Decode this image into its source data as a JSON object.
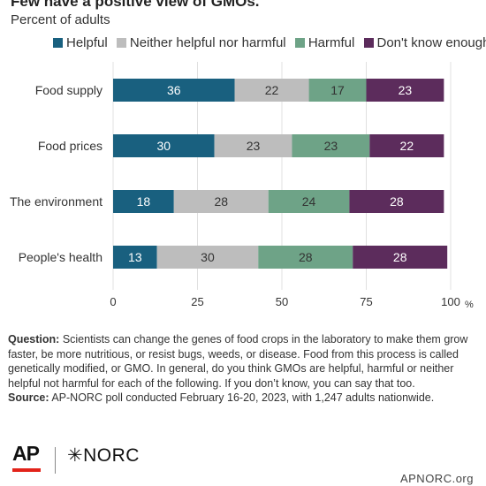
{
  "header": {
    "title": "Few have a positive view of GMOs.",
    "subtitle": "Percent of adults"
  },
  "legend": [
    {
      "label": "Helpful",
      "color": "#19607f"
    },
    {
      "label": "Neither helpful nor harmful",
      "color": "#bdbdbd"
    },
    {
      "label": "Harmful",
      "color": "#6ea387"
    },
    {
      "label": "Don't know enough",
      "color": "#5c2c5c"
    }
  ],
  "chart_data": {
    "type": "bar",
    "orientation": "horizontal",
    "stacked": true,
    "categories": [
      "Food supply",
      "Food prices",
      "The environment",
      "People's health"
    ],
    "series": [
      {
        "name": "Helpful",
        "color": "#19607f",
        "values": [
          36,
          30,
          18,
          13
        ]
      },
      {
        "name": "Neither helpful nor harmful",
        "color": "#bdbdbd",
        "values": [
          22,
          23,
          28,
          30
        ]
      },
      {
        "name": "Harmful",
        "color": "#6ea387",
        "values": [
          17,
          23,
          24,
          28
        ]
      },
      {
        "name": "Don't know enough",
        "color": "#5c2c5c",
        "values": [
          23,
          22,
          28,
          28
        ]
      }
    ],
    "xlim": [
      0,
      100
    ],
    "xticks": [
      0,
      25,
      50,
      75,
      100
    ],
    "xunit": "%",
    "grid": true,
    "legend_position": "top"
  },
  "notes": {
    "question_label": "Question:",
    "question_text": " Scientists can change the genes of food crops in the laboratory to make them grow faster, be more nutritious, or resist bugs, weeds, or disease. Food from this process is called genetically modified, or GMO.  In general, do you think GMOs are helpful, harmful or neither helpful not harmful for each of the following. If you don’t know, you can say that too.",
    "source_label": "Source:",
    "source_text": " AP-NORC poll conducted February 16-20, 2023, with 1,247 adults nationwide."
  },
  "footer": {
    "logo_ap": "AP",
    "logo_norc": "✳NORC",
    "url": "APNORC.org"
  }
}
